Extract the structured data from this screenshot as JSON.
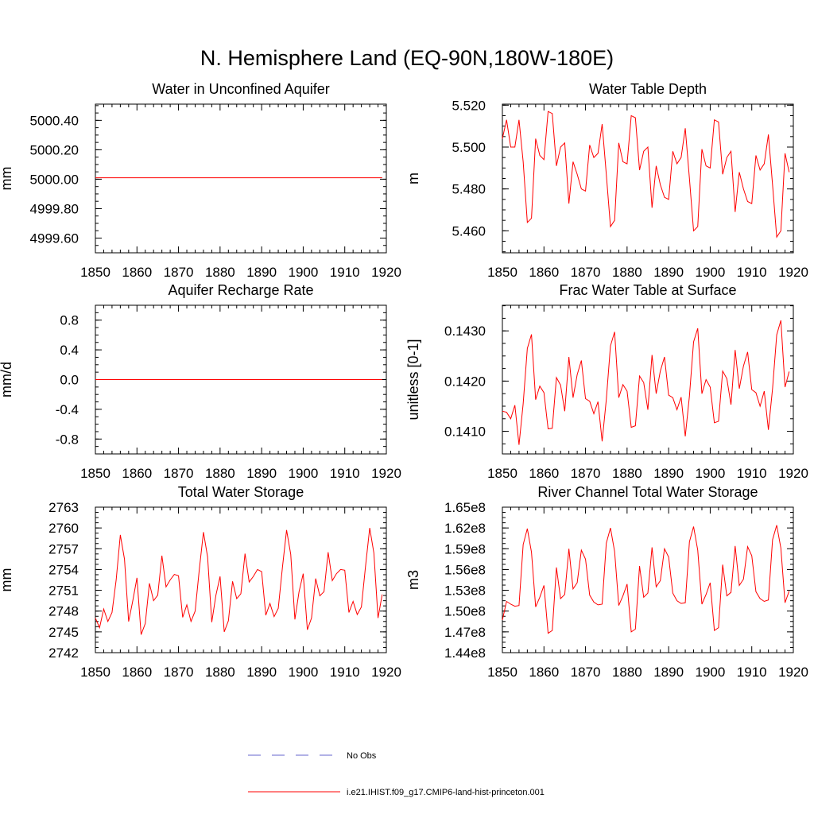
{
  "figure": {
    "title": "N. Hemisphere Land (EQ-90N,180W-180E)"
  },
  "colors": {
    "series": "#ff0000",
    "no_obs": "#6666cc",
    "axis": "#000000"
  },
  "legend": {
    "placement": "bottom-center",
    "entries": [
      {
        "label": "No Obs",
        "style": "dashed",
        "color": "#6666cc"
      },
      {
        "label": "i.e21.IHIST.f09_g17.CMIP6-land-hist-princeton.001",
        "style": "solid",
        "color": "#ff0000"
      }
    ]
  },
  "chart_data": [
    {
      "type": "line",
      "title": "Water in Unconfined Aquifer",
      "ylabel": "mm",
      "xlim": [
        1850,
        1920
      ],
      "ylim": [
        4999.5,
        5000.51
      ],
      "xticks": [
        1850,
        1860,
        1870,
        1880,
        1890,
        1900,
        1910,
        1920
      ],
      "xtick_labels": [
        "1850",
        "1860",
        "1870",
        "1880",
        "1890",
        "1900",
        "1910",
        "1920"
      ],
      "yticks": [
        4999.6,
        4999.8,
        5000.0,
        5000.2,
        5000.4
      ],
      "ytick_labels": [
        "4999.60",
        "4999.80",
        "5000.00",
        "5000.20",
        "5000.40"
      ],
      "series": [
        {
          "x": [
            1850,
            1919
          ],
          "values": [
            5000.01,
            5000.01
          ]
        }
      ]
    },
    {
      "type": "line",
      "title": "Water Table Depth",
      "ylabel": "m",
      "xlim": [
        1850,
        1920
      ],
      "ylim": [
        5.4495,
        5.5205
      ],
      "xticks": [
        1850,
        1860,
        1870,
        1880,
        1890,
        1900,
        1910,
        1920
      ],
      "xtick_labels": [
        "1850",
        "1860",
        "1870",
        "1880",
        "1890",
        "1900",
        "1910",
        "1920"
      ],
      "yticks": [
        5.46,
        5.48,
        5.5,
        5.52
      ],
      "ytick_labels": [
        "5.460",
        "5.480",
        "5.500",
        "5.520"
      ],
      "series": [
        {
          "x0": 1850,
          "values": [
            5.504,
            5.513,
            5.5,
            5.5,
            5.513,
            5.493,
            5.464,
            5.466,
            5.504,
            5.496,
            5.494,
            5.517,
            5.516,
            5.491,
            5.5,
            5.502,
            5.473,
            5.493,
            5.487,
            5.48,
            5.479,
            5.501,
            5.495,
            5.497,
            5.511,
            5.487,
            5.462,
            5.465,
            5.502,
            5.493,
            5.492,
            5.515,
            5.514,
            5.489,
            5.498,
            5.5,
            5.471,
            5.491,
            5.482,
            5.476,
            5.475,
            5.498,
            5.492,
            5.495,
            5.509,
            5.485,
            5.46,
            5.462,
            5.499,
            5.491,
            5.49,
            5.513,
            5.512,
            5.487,
            5.495,
            5.498,
            5.469,
            5.488,
            5.48,
            5.474,
            5.473,
            5.496,
            5.489,
            5.492,
            5.506,
            5.482,
            5.457,
            5.46,
            5.497,
            5.488
          ]
        }
      ]
    },
    {
      "type": "line",
      "title": "Aquifer Recharge Rate",
      "ylabel": "mm/d",
      "xlim": [
        1850,
        1920
      ],
      "ylim": [
        -1.0,
        1.0
      ],
      "xticks": [
        1850,
        1860,
        1870,
        1880,
        1890,
        1900,
        1910,
        1920
      ],
      "xtick_labels": [
        "1850",
        "1860",
        "1870",
        "1880",
        "1890",
        "1900",
        "1910",
        "1920"
      ],
      "yticks": [
        -0.8,
        -0.4,
        0.0,
        0.4,
        0.8
      ],
      "ytick_labels": [
        "-0.8",
        "-0.4",
        "0.0",
        "0.4",
        "0.8"
      ],
      "series": [
        {
          "x": [
            1850,
            1919
          ],
          "values": [
            0.0,
            0.0
          ]
        }
      ]
    },
    {
      "type": "line",
      "title": "Frac Water Table at Surface",
      "ylabel": "unitless [0-1]",
      "xlim": [
        1850,
        1920
      ],
      "ylim": [
        0.14055,
        0.14351
      ],
      "xticks": [
        1850,
        1860,
        1870,
        1880,
        1890,
        1900,
        1910,
        1920
      ],
      "xtick_labels": [
        "1850",
        "1860",
        "1870",
        "1880",
        "1890",
        "1900",
        "1910",
        "1920"
      ],
      "yticks": [
        0.141,
        0.142,
        0.143
      ],
      "ytick_labels": [
        "0.1410",
        "0.1420",
        "0.1430"
      ],
      "series": [
        {
          "x0": 1850,
          "values": [
            0.1414,
            0.14138,
            0.14125,
            0.14152,
            0.14073,
            0.14155,
            0.14265,
            0.14293,
            0.14163,
            0.1419,
            0.14177,
            0.14105,
            0.14106,
            0.14207,
            0.14192,
            0.1414,
            0.14248,
            0.14167,
            0.14213,
            0.14241,
            0.14165,
            0.1416,
            0.14135,
            0.14159,
            0.1408,
            0.14163,
            0.1427,
            0.14298,
            0.14167,
            0.14193,
            0.1418,
            0.14108,
            0.14111,
            0.1421,
            0.14197,
            0.14143,
            0.14252,
            0.14175,
            0.1422,
            0.14248,
            0.14172,
            0.14167,
            0.14143,
            0.14168,
            0.1409,
            0.1417,
            0.14278,
            0.14305,
            0.14175,
            0.14203,
            0.14188,
            0.14117,
            0.1412,
            0.1422,
            0.14205,
            0.14153,
            0.14262,
            0.14185,
            0.1423,
            0.14258,
            0.14183,
            0.14177,
            0.1415,
            0.1418,
            0.14103,
            0.14185,
            0.14292,
            0.14321,
            0.14188,
            0.14219
          ]
        }
      ]
    },
    {
      "type": "line",
      "title": "Total Water Storage",
      "ylabel": "mm",
      "xlim": [
        1850,
        1920
      ],
      "ylim": [
        2742,
        2763
      ],
      "xticks": [
        1850,
        1860,
        1870,
        1880,
        1890,
        1900,
        1910,
        1920
      ],
      "xtick_labels": [
        "1850",
        "1860",
        "1870",
        "1880",
        "1890",
        "1900",
        "1910",
        "1920"
      ],
      "yticks": [
        2742,
        2745,
        2748,
        2751,
        2754,
        2757,
        2760,
        2763
      ],
      "ytick_labels": [
        "2742",
        "2745",
        "2748",
        "2751",
        "2754",
        "2757",
        "2760",
        "2763"
      ],
      "series": [
        {
          "x0": 1850,
          "values": [
            2747.0,
            2745.6,
            2748.3,
            2746.5,
            2747.8,
            2752.5,
            2759.0,
            2755.5,
            2746.5,
            2749.5,
            2752.8,
            2744.6,
            2746.2,
            2752.0,
            2749.5,
            2750.3,
            2756.0,
            2751.5,
            2752.5,
            2753.3,
            2753.1,
            2747.1,
            2748.9,
            2746.5,
            2748.0,
            2754.0,
            2759.4,
            2755.8,
            2746.4,
            2750.3,
            2753.0,
            2745.0,
            2746.6,
            2752.3,
            2749.8,
            2750.5,
            2756.3,
            2752.2,
            2753.0,
            2754.0,
            2753.7,
            2747.4,
            2749.1,
            2747.2,
            2748.4,
            2754.3,
            2759.7,
            2756.2,
            2746.8,
            2750.8,
            2753.4,
            2745.3,
            2747.0,
            2752.7,
            2750.2,
            2750.8,
            2756.5,
            2752.4,
            2753.4,
            2754.0,
            2753.9,
            2747.8,
            2749.4,
            2747.5,
            2748.6,
            2754.5,
            2760.0,
            2756.4,
            2747.0,
            2750.4
          ]
        }
      ]
    },
    {
      "type": "line",
      "title": "River Channel Total Water Storage",
      "ylabel": "m3",
      "xlim": [
        1850,
        1920
      ],
      "ylim": [
        144000000.0,
        165000000.0
      ],
      "xticks": [
        1850,
        1860,
        1870,
        1880,
        1890,
        1900,
        1910,
        1920
      ],
      "xtick_labels": [
        "1850",
        "1860",
        "1870",
        "1880",
        "1890",
        "1900",
        "1910",
        "1920"
      ],
      "yticks": [
        144000000.0,
        147000000.0,
        150000000.0,
        153000000.0,
        156000000.0,
        159000000.0,
        162000000.0,
        165000000.0
      ],
      "ytick_labels": [
        "1.44e8",
        "1.47e8",
        "1.50e8",
        "1.53e8",
        "1.56e8",
        "1.59e8",
        "1.62e8",
        "1.65e8"
      ],
      "series": [
        {
          "x0": 1850,
          "values": [
            148700000.0,
            151400000.0,
            151000000.0,
            150700000.0,
            150800000.0,
            159600000.0,
            161900000.0,
            158500000.0,
            150600000.0,
            152000000.0,
            153700000.0,
            146800000.0,
            147200000.0,
            156300000.0,
            151800000.0,
            152400000.0,
            159000000.0,
            153200000.0,
            154100000.0,
            158800000.0,
            157500000.0,
            152300000.0,
            151300000.0,
            150900000.0,
            151000000.0,
            159800000.0,
            162000000.0,
            158600000.0,
            150800000.0,
            152200000.0,
            153900000.0,
            147000000.0,
            147400000.0,
            156500000.0,
            152000000.0,
            152600000.0,
            159200000.0,
            153500000.0,
            154400000.0,
            159000000.0,
            157800000.0,
            152600000.0,
            151500000.0,
            151100000.0,
            151200000.0,
            160000000.0,
            162200000.0,
            158800000.0,
            151000000.0,
            152400000.0,
            154100000.0,
            147200000.0,
            147600000.0,
            156700000.0,
            152200000.0,
            152700000.0,
            159400000.0,
            153700000.0,
            154600000.0,
            159300000.0,
            158000000.0,
            152800000.0,
            151800000.0,
            151400000.0,
            151600000.0,
            160300000.0,
            162400000.0,
            159100000.0,
            151200000.0,
            152900000.0
          ]
        }
      ]
    }
  ]
}
